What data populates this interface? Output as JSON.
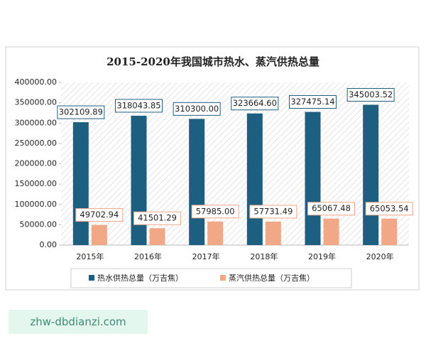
{
  "chart_data": {
    "type": "bar",
    "title": "2015-2020年我国城市热水、蒸汽供热总量",
    "categories": [
      "2015年",
      "2016年",
      "2017年",
      "2018年",
      "2019年",
      "2020年"
    ],
    "series": [
      {
        "name": "热水供热总量（万吉焦）",
        "color": "#1d5f80",
        "values": [
          302109.89,
          318043.85,
          310300.0,
          323664.6,
          327475.14,
          345003.52
        ],
        "value_labels": [
          "302109.89",
          "318043.85",
          "310300.00",
          "323664.60",
          "327475.14",
          "345003.52"
        ]
      },
      {
        "name": "蒸汽供热总量（万吉焦）",
        "color": "#f0a887",
        "values": [
          49702.94,
          41501.29,
          57985.0,
          57731.49,
          65067.48,
          65053.54
        ],
        "value_labels": [
          "49702.94",
          "41501.29",
          "57985.00",
          "57731.49",
          "65067.48",
          "65053.54"
        ]
      }
    ],
    "ylim": [
      0,
      400000
    ],
    "yticks": [
      {
        "value": 0,
        "label": "0.00"
      },
      {
        "value": 50000,
        "label": "50000.00"
      },
      {
        "value": 100000,
        "label": "100000.00"
      },
      {
        "value": 150000,
        "label": "150000.00"
      },
      {
        "value": 200000,
        "label": "200000.00"
      },
      {
        "value": 250000,
        "label": "250000.00"
      },
      {
        "value": 300000,
        "label": "300000.00"
      },
      {
        "value": 350000,
        "label": "350000.00"
      },
      {
        "value": 400000,
        "label": "400000.00"
      }
    ],
    "legend": "bottom"
  },
  "watermark": "zhw-dbdianzi.com"
}
